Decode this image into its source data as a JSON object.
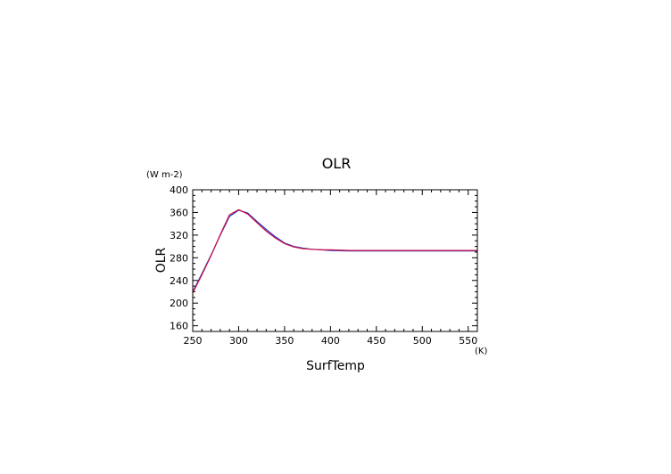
{
  "chart_data": {
    "type": "line",
    "title": "OLR",
    "xlabel": "SurfTemp",
    "ylabel": "OLR",
    "x_unit": "(K)",
    "y_unit": "(W m-2)",
    "xlim": [
      250,
      560
    ],
    "ylim": [
      150,
      400
    ],
    "x_ticks": [
      250,
      300,
      350,
      400,
      450,
      500,
      550
    ],
    "y_ticks": [
      160,
      200,
      240,
      280,
      320,
      360,
      400
    ],
    "grid": false,
    "legend": "none",
    "series": [
      {
        "color": "#2233cc",
        "x": [
          250,
          260,
          270,
          280,
          290,
          300,
          310,
          320,
          330,
          340,
          350,
          360,
          370,
          380,
          390,
          400,
          420,
          450,
          500,
          560
        ],
        "y": [
          220,
          252,
          285,
          320,
          353,
          364,
          359,
          344,
          330,
          317,
          306,
          300,
          297,
          295,
          294,
          293,
          292,
          292,
          292,
          292
        ]
      },
      {
        "color": "#cc1144",
        "x": [
          250,
          260,
          270,
          280,
          290,
          300,
          310,
          320,
          330,
          340,
          350,
          360,
          370,
          380,
          390,
          400,
          420,
          450,
          500,
          560
        ],
        "y": [
          218,
          250,
          284,
          321,
          356,
          365,
          357,
          342,
          327,
          315,
          305,
          299,
          296,
          295,
          294,
          294,
          293,
          293,
          293,
          293
        ]
      }
    ]
  }
}
